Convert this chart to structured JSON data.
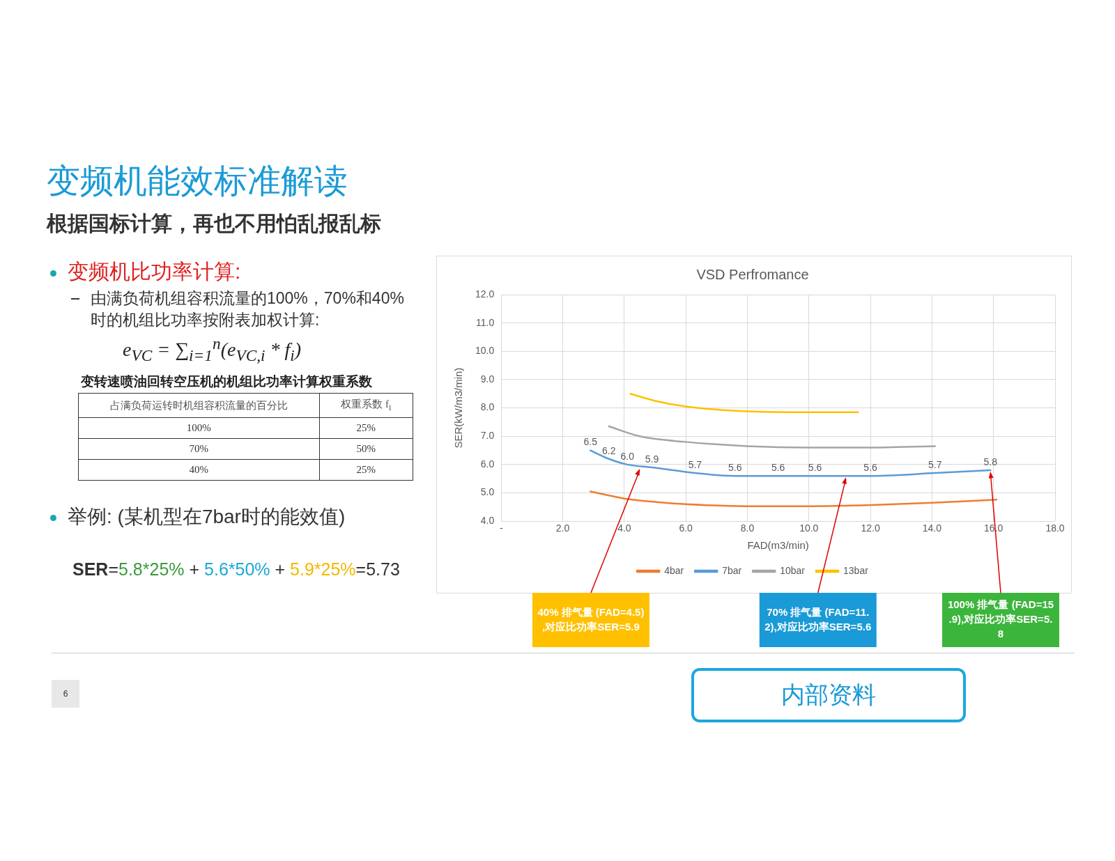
{
  "chart_data": [
    {
      "type": "other",
      "title": "变频机能效标准解读",
      "subtitle": "根据国标计算，再也不用怕乱报乱标",
      "annotations": [
        "变频机比功率计算:",
        "由满负荷机组容积流量的100%，70%和40%时的机组比功率按附表加权计算:",
        "e$_{VC}$ = ∑$_{i=1}$$^{n}$(e$_{VC,i}$ * f$_{i}$)",
        "变转速喷油回转空压机的机组比功率计算权重系数",
        "占满负荷运转时机组容积流量的百分比",
        "权重系数 f$_{i}$",
        "100%",
        "25%",
        "70%",
        "50%",
        "40%",
        "25%",
        "举例: (某机型在7bar时的能效值)",
        "SER=5.8*25% + 5.6*50% + 5.9*25%=5.73",
        "6",
        "内部资料"
      ]
    },
    {
      "type": "line",
      "title": "VSD Perfromance",
      "xlabel": "FAD(m3/min)",
      "ylabel": "SER(kW/m3/min)",
      "xlim": [
        0,
        18
      ],
      "xticks": [
        {
          "value": 0,
          "label": "-"
        },
        {
          "value": 2,
          "label": "2.0"
        },
        {
          "value": 4,
          "label": "4.0"
        },
        {
          "value": 6,
          "label": "6.0"
        },
        {
          "value": 8,
          "label": "8.0"
        },
        {
          "value": 10,
          "label": "10.0"
        },
        {
          "value": 12,
          "label": "12.0"
        },
        {
          "value": 14,
          "label": "14.0"
        },
        {
          "value": 16,
          "label": "16.0"
        },
        {
          "value": 18,
          "label": "18.0"
        }
      ],
      "ylim": [
        4,
        12
      ],
      "yticks": [
        {
          "value": 4,
          "label": "4.0"
        },
        {
          "value": 5,
          "label": "5.0"
        },
        {
          "value": 6,
          "label": "6.0"
        },
        {
          "value": 7,
          "label": "7.0"
        },
        {
          "value": 8,
          "label": "8.0"
        },
        {
          "value": 9,
          "label": "9.0"
        },
        {
          "value": 10,
          "label": "10.0"
        },
        {
          "value": 11,
          "label": "11.0"
        },
        {
          "value": 12,
          "label": "12.0"
        }
      ],
      "grid": true,
      "legend": "bottom",
      "marker": "none",
      "line_style": "solid",
      "series": [
        {
          "name": "4bar",
          "color": "#ed7d31",
          "x": [
            2.9,
            4,
            5,
            6,
            8,
            10,
            12,
            14,
            16.1
          ],
          "values": [
            5.05,
            4.8,
            4.68,
            4.6,
            4.53,
            4.53,
            4.57,
            4.65,
            4.76
          ]
        },
        {
          "name": "7bar",
          "color": "#5b9bd5",
          "x": [
            2.9,
            3.5,
            4.1,
            4.9,
            6.3,
            7.6,
            9.0,
            10.2,
            12.0,
            14.1,
            15.9
          ],
          "values": [
            6.5,
            6.2,
            6.0,
            5.9,
            5.7,
            5.6,
            5.6,
            5.6,
            5.6,
            5.7,
            5.8
          ],
          "value_labels": [
            "6.5",
            "6.2",
            "6.0",
            "5.9",
            "5.7",
            "5.6",
            "5.6",
            "5.6",
            "5.6",
            "5.7",
            "5.8"
          ]
        },
        {
          "name": "10bar",
          "color": "#a5a5a5",
          "x": [
            3.5,
            4.5,
            6,
            8,
            10,
            12,
            14.1
          ],
          "values": [
            7.35,
            7.0,
            6.8,
            6.65,
            6.6,
            6.6,
            6.65
          ]
        },
        {
          "name": "13bar",
          "color": "#ffc000",
          "x": [
            4.2,
            5,
            6,
            8,
            10,
            11.6
          ],
          "values": [
            8.5,
            8.25,
            8.05,
            7.88,
            7.85,
            7.85
          ]
        }
      ],
      "annotations": [
        {
          "text": "40% 排气量 (FAD=4.5),对应比功率SER=5.9",
          "x": 4.5,
          "y": 5.9
        },
        {
          "text": "70% 排气量 (FAD=11.2),对应比功率SER=5.6",
          "x": 11.2,
          "y": 5.6
        },
        {
          "text": "100% 排气量 (FAD=15.9),对应比功率SER=5.8",
          "x": 15.9,
          "y": 5.8
        }
      ]
    }
  ]
}
